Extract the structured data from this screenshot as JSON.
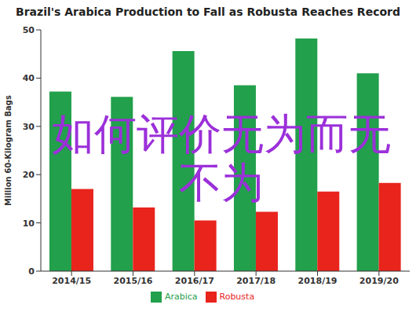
{
  "chart_data": {
    "type": "bar",
    "title": "Brazil's Arabica Production to Fall as Robusta Reaches Record",
    "y_label": "Million 60-Kilogram Bags",
    "annotations": [
      "如何评价无为而无不为"
    ],
    "categories": [
      "2014/15",
      "2015/16",
      "2016/17",
      "2017/18",
      "2018/19",
      "2019/20"
    ],
    "series": [
      {
        "name": "Arabica",
        "color": "#22a04b",
        "values": [
          37.2,
          36.1,
          45.6,
          38.5,
          48.2,
          41.0
        ]
      },
      {
        "name": "Robusta",
        "color": "#e8241d",
        "values": [
          17.0,
          13.2,
          10.5,
          12.3,
          16.5,
          18.3
        ]
      }
    ],
    "ylim": [
      0,
      50
    ],
    "yticks": [
      0,
      10,
      20,
      30,
      40,
      50
    ],
    "grid": false,
    "legend": "bottom"
  }
}
